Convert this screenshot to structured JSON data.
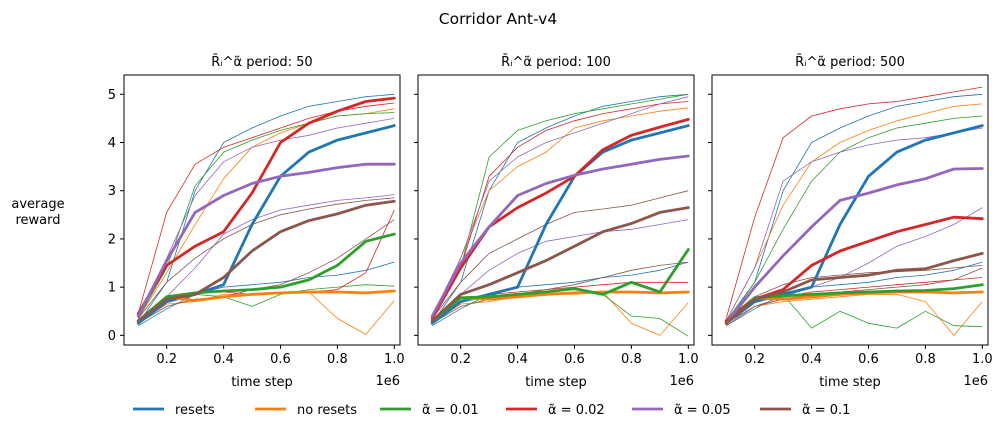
{
  "figure_title": "Corridor Ant-v4",
  "ylabel_line1": "average",
  "ylabel_line2": "reward",
  "xlabel": "time step",
  "x_multiplier": "1e6",
  "legend": [
    {
      "key": "resets",
      "label": "resets",
      "color": "#1f77b4"
    },
    {
      "key": "noresets",
      "label": "no resets",
      "color": "#ff7f0e"
    },
    {
      "key": "a001",
      "label": "α̃ = 0.01",
      "color": "#2ca02c"
    },
    {
      "key": "a002",
      "label": "α̃ = 0.02",
      "color": "#d62728"
    },
    {
      "key": "a005",
      "label": "α̃ = 0.05",
      "color": "#9467bd"
    },
    {
      "key": "a01",
      "label": "α̃ = 0.1",
      "color": "#8c564b"
    }
  ],
  "chart_data": [
    {
      "type": "line",
      "title": "R̄ᵢ^α̃ period: 50",
      "x": [
        0.1,
        0.2,
        0.3,
        0.4,
        0.5,
        0.6,
        0.7,
        0.8,
        0.9,
        1.0
      ],
      "xlabel": "time step",
      "ylabel": "average reward",
      "xlim": [
        0.05,
        1.02
      ],
      "ylim": [
        -0.2,
        5.4
      ],
      "xticks": [
        0.2,
        0.4,
        0.6,
        0.8,
        1.0
      ],
      "yticks": [
        0,
        1,
        2,
        3,
        4,
        5
      ],
      "series": [
        {
          "name": "resets",
          "key": "resets",
          "values": [
            0.25,
            0.7,
            0.85,
            1.05,
            2.3,
            3.3,
            3.8,
            4.05,
            4.2,
            4.35
          ]
        },
        {
          "name": "no resets",
          "key": "noresets",
          "values": [
            0.3,
            0.8,
            0.72,
            0.8,
            0.85,
            0.88,
            0.9,
            0.9,
            0.88,
            0.92
          ]
        },
        {
          "name": "α̃ = 0.01",
          "key": "a001",
          "values": [
            0.3,
            0.8,
            0.88,
            0.92,
            0.95,
            1.0,
            1.15,
            1.45,
            1.95,
            2.1
          ]
        },
        {
          "name": "α̃ = 0.02",
          "key": "a002",
          "values": [
            0.45,
            1.45,
            1.85,
            2.15,
            2.95,
            4.0,
            4.4,
            4.65,
            4.85,
            4.92
          ]
        },
        {
          "name": "α̃ = 0.05",
          "key": "a005",
          "values": [
            0.4,
            1.55,
            2.55,
            2.9,
            3.15,
            3.3,
            3.38,
            3.48,
            3.55,
            3.55
          ]
        },
        {
          "name": "α̃ = 0.1",
          "key": "a01",
          "values": [
            0.3,
            0.75,
            0.85,
            1.2,
            1.75,
            2.15,
            2.38,
            2.52,
            2.7,
            2.78
          ]
        }
      ],
      "individual_runs": [
        {
          "key": "resets",
          "values": [
            0.25,
            1.1,
            3.0,
            4.0,
            4.3,
            4.55,
            4.75,
            4.85,
            4.95,
            5.0
          ]
        },
        {
          "key": "resets",
          "values": [
            0.2,
            0.55,
            0.85,
            1.0,
            1.05,
            1.1,
            1.2,
            1.25,
            1.35,
            1.52
          ]
        },
        {
          "key": "noresets",
          "values": [
            0.35,
            1.3,
            2.3,
            3.25,
            3.9,
            4.2,
            4.4,
            4.55,
            4.6,
            4.7
          ]
        },
        {
          "key": "noresets",
          "values": [
            0.25,
            0.65,
            0.7,
            0.85,
            0.85,
            0.9,
            0.9,
            0.35,
            0.02,
            0.72
          ]
        },
        {
          "key": "a001",
          "values": [
            0.35,
            1.4,
            3.1,
            3.8,
            4.05,
            4.25,
            4.4,
            4.55,
            4.6,
            4.62
          ]
        },
        {
          "key": "a001",
          "values": [
            0.25,
            0.7,
            0.85,
            0.8,
            0.6,
            0.85,
            0.95,
            1.0,
            1.05,
            1.02
          ]
        },
        {
          "key": "a002",
          "values": [
            0.45,
            2.55,
            3.55,
            3.9,
            4.1,
            4.3,
            4.5,
            4.65,
            4.75,
            4.82
          ]
        },
        {
          "key": "a002",
          "values": [
            0.3,
            0.7,
            0.9,
            0.9,
            0.85,
            0.9,
            0.9,
            0.95,
            1.3,
            2.6
          ]
        },
        {
          "key": "a005",
          "values": [
            0.4,
            1.6,
            2.9,
            3.6,
            3.9,
            4.05,
            4.15,
            4.3,
            4.4,
            4.5
          ]
        },
        {
          "key": "a005",
          "values": [
            0.3,
            0.8,
            1.4,
            2.1,
            2.4,
            2.6,
            2.7,
            2.8,
            2.85,
            2.92
          ]
        },
        {
          "key": "a01",
          "values": [
            0.35,
            1.1,
            1.6,
            2.0,
            2.3,
            2.5,
            2.62,
            2.72,
            2.8,
            2.85
          ]
        },
        {
          "key": "a01",
          "values": [
            0.25,
            0.6,
            0.75,
            0.8,
            0.95,
            1.05,
            1.3,
            1.6,
            2.0,
            2.4
          ]
        }
      ]
    },
    {
      "type": "line",
      "title": "R̄ᵢ^α̃ period: 100",
      "x": [
        0.1,
        0.2,
        0.3,
        0.4,
        0.5,
        0.6,
        0.7,
        0.8,
        0.9,
        1.0
      ],
      "xlabel": "time step",
      "xlim": [
        0.05,
        1.02
      ],
      "ylim": [
        -0.2,
        5.4
      ],
      "xticks": [
        0.2,
        0.4,
        0.6,
        0.8,
        1.0
      ],
      "yticks": [
        0,
        1,
        2,
        3,
        4,
        5
      ],
      "series": [
        {
          "name": "resets",
          "key": "resets",
          "values": [
            0.25,
            0.7,
            0.85,
            1.0,
            2.3,
            3.3,
            3.8,
            4.05,
            4.2,
            4.35
          ]
        },
        {
          "name": "no resets",
          "key": "noresets",
          "values": [
            0.3,
            0.78,
            0.75,
            0.8,
            0.85,
            0.88,
            0.9,
            0.9,
            0.88,
            0.9
          ]
        },
        {
          "name": "α̃ = 0.01",
          "key": "a001",
          "values": [
            0.3,
            0.78,
            0.8,
            0.85,
            0.9,
            0.97,
            0.85,
            1.1,
            0.9,
            1.78
          ]
        },
        {
          "name": "α̃ = 0.02",
          "key": "a002",
          "values": [
            0.35,
            1.4,
            2.25,
            2.65,
            2.95,
            3.3,
            3.85,
            4.15,
            4.32,
            4.48
          ]
        },
        {
          "name": "α̃ = 0.05",
          "key": "a005",
          "values": [
            0.4,
            1.5,
            2.25,
            2.9,
            3.15,
            3.32,
            3.45,
            3.55,
            3.65,
            3.72
          ]
        },
        {
          "name": "α̃ = 0.1",
          "key": "a01",
          "values": [
            0.3,
            0.85,
            1.05,
            1.3,
            1.55,
            1.85,
            2.15,
            2.32,
            2.55,
            2.65
          ]
        }
      ],
      "individual_runs": [
        {
          "key": "resets",
          "values": [
            0.25,
            1.1,
            3.0,
            4.0,
            4.3,
            4.55,
            4.75,
            4.85,
            4.95,
            5.0
          ]
        },
        {
          "key": "resets",
          "values": [
            0.2,
            0.55,
            0.85,
            1.0,
            1.05,
            1.1,
            1.2,
            1.25,
            1.35,
            1.52
          ]
        },
        {
          "key": "noresets",
          "values": [
            0.35,
            1.6,
            3.0,
            3.5,
            3.8,
            4.3,
            4.45,
            4.55,
            4.65,
            4.72
          ]
        },
        {
          "key": "noresets",
          "values": [
            0.25,
            0.65,
            0.7,
            0.8,
            0.85,
            0.85,
            0.9,
            0.25,
            0.0,
            0.68
          ]
        },
        {
          "key": "a001",
          "values": [
            0.35,
            1.4,
            3.7,
            4.25,
            4.45,
            4.6,
            4.7,
            4.8,
            4.9,
            5.0
          ]
        },
        {
          "key": "a001",
          "values": [
            0.25,
            0.7,
            0.85,
            0.8,
            0.9,
            0.95,
            0.85,
            0.4,
            0.35,
            -0.02
          ]
        },
        {
          "key": "a002",
          "values": [
            0.4,
            1.4,
            3.3,
            3.9,
            4.25,
            4.45,
            4.6,
            4.7,
            4.8,
            4.85
          ]
        },
        {
          "key": "a002",
          "values": [
            0.3,
            0.7,
            0.85,
            0.9,
            0.95,
            1.0,
            1.05,
            1.1,
            1.1,
            1.1
          ]
        },
        {
          "key": "a005",
          "values": [
            0.4,
            1.6,
            3.2,
            3.7,
            4.0,
            4.2,
            4.4,
            4.6,
            4.8,
            4.95
          ]
        },
        {
          "key": "a005",
          "values": [
            0.3,
            0.85,
            1.35,
            1.7,
            1.95,
            2.05,
            2.15,
            2.2,
            2.3,
            2.4
          ]
        },
        {
          "key": "a01",
          "values": [
            0.35,
            1.1,
            1.7,
            2.0,
            2.3,
            2.55,
            2.62,
            2.7,
            2.85,
            3.0
          ]
        },
        {
          "key": "a01",
          "values": [
            0.25,
            0.6,
            0.75,
            0.85,
            0.95,
            1.05,
            1.2,
            1.35,
            1.45,
            1.52
          ]
        }
      ]
    },
    {
      "type": "line",
      "title": "R̄ᵢ^α̃ period: 500",
      "x": [
        0.1,
        0.2,
        0.3,
        0.4,
        0.5,
        0.6,
        0.7,
        0.8,
        0.9,
        1.0
      ],
      "xlabel": "time step",
      "xlim": [
        0.05,
        1.02
      ],
      "ylim": [
        -0.2,
        5.4
      ],
      "xticks": [
        0.2,
        0.4,
        0.6,
        0.8,
        1.0
      ],
      "yticks": [
        0,
        1,
        2,
        3,
        4,
        5
      ],
      "series": [
        {
          "name": "resets",
          "key": "resets",
          "values": [
            0.25,
            0.7,
            0.85,
            1.0,
            2.3,
            3.3,
            3.8,
            4.05,
            4.2,
            4.35
          ]
        },
        {
          "name": "no resets",
          "key": "noresets",
          "values": [
            0.3,
            0.78,
            0.75,
            0.8,
            0.85,
            0.88,
            0.9,
            0.9,
            0.88,
            0.9
          ]
        },
        {
          "name": "α̃ = 0.01",
          "key": "a001",
          "values": [
            0.3,
            0.78,
            0.82,
            0.85,
            0.88,
            0.9,
            0.92,
            0.93,
            0.97,
            1.05
          ]
        },
        {
          "name": "α̃ = 0.02",
          "key": "a002",
          "values": [
            0.3,
            0.75,
            0.95,
            1.45,
            1.75,
            1.95,
            2.15,
            2.3,
            2.45,
            2.42
          ]
        },
        {
          "name": "α̃ = 0.05",
          "key": "a005",
          "values": [
            0.25,
            1.0,
            1.65,
            2.25,
            2.8,
            2.95,
            3.12,
            3.25,
            3.45,
            3.46
          ]
        },
        {
          "name": "α̃ = 0.1",
          "key": "a01",
          "values": [
            0.25,
            0.75,
            0.9,
            1.15,
            1.2,
            1.25,
            1.35,
            1.38,
            1.55,
            1.7
          ]
        }
      ],
      "individual_runs": [
        {
          "key": "resets",
          "values": [
            0.25,
            1.1,
            3.0,
            4.0,
            4.3,
            4.55,
            4.75,
            4.85,
            4.95,
            5.0
          ]
        },
        {
          "key": "resets",
          "values": [
            0.2,
            0.55,
            0.85,
            1.0,
            1.05,
            1.1,
            1.2,
            1.25,
            1.35,
            1.52
          ]
        },
        {
          "key": "noresets",
          "values": [
            0.3,
            1.4,
            2.7,
            3.6,
            4.0,
            4.25,
            4.45,
            4.6,
            4.75,
            4.8
          ]
        },
        {
          "key": "noresets",
          "values": [
            0.25,
            0.6,
            0.7,
            0.75,
            0.8,
            0.85,
            0.85,
            0.7,
            0.0,
            0.7
          ]
        },
        {
          "key": "a001",
          "values": [
            0.3,
            1.1,
            2.2,
            3.2,
            3.8,
            4.1,
            4.3,
            4.4,
            4.5,
            4.55
          ]
        },
        {
          "key": "a001",
          "values": [
            0.25,
            0.7,
            0.85,
            0.15,
            0.5,
            0.25,
            0.15,
            0.5,
            0.2,
            0.18
          ]
        },
        {
          "key": "a002",
          "values": [
            0.35,
            2.45,
            4.1,
            4.55,
            4.7,
            4.8,
            4.85,
            4.95,
            5.05,
            5.15
          ]
        },
        {
          "key": "a002",
          "values": [
            0.25,
            0.7,
            0.8,
            0.9,
            0.95,
            1.0,
            1.05,
            1.1,
            1.15,
            1.2
          ]
        },
        {
          "key": "a005",
          "values": [
            0.3,
            1.4,
            3.2,
            3.6,
            3.8,
            3.95,
            4.05,
            4.1,
            4.2,
            4.3
          ]
        },
        {
          "key": "a005",
          "values": [
            0.25,
            0.6,
            0.8,
            1.0,
            1.2,
            1.5,
            1.85,
            2.05,
            2.3,
            2.65
          ]
        },
        {
          "key": "a01",
          "values": [
            0.25,
            0.8,
            1.05,
            1.2,
            1.25,
            1.3,
            1.32,
            1.35,
            1.4,
            1.45
          ]
        },
        {
          "key": "a01",
          "values": [
            0.2,
            0.6,
            0.75,
            0.85,
            0.9,
            0.95,
            1.0,
            1.05,
            1.15,
            1.4
          ]
        }
      ]
    }
  ]
}
